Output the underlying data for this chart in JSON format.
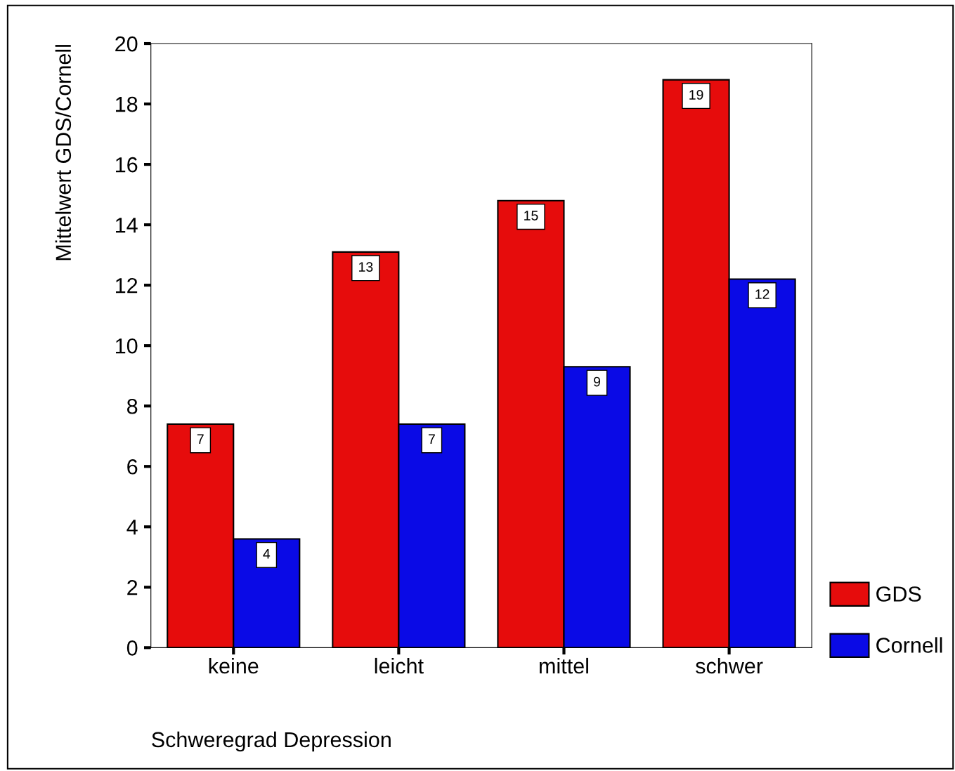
{
  "chart_data": {
    "type": "bar",
    "xlabel": "Schweregrad Depression",
    "ylabel": "Mittelwert GDS/Cornell",
    "categories": [
      "keine",
      "leicht",
      "mittel",
      "schwer"
    ],
    "series": [
      {
        "name": "GDS",
        "color": "#e60c0c",
        "values": [
          7.4,
          13.1,
          14.8,
          18.8
        ],
        "value_labels": [
          "7",
          "13",
          "15",
          "19"
        ]
      },
      {
        "name": "Cornell",
        "color": "#0a0ae6",
        "values": [
          3.6,
          7.4,
          9.3,
          12.2
        ],
        "value_labels": [
          "4",
          "7",
          "9",
          "12"
        ]
      }
    ],
    "ylim": [
      0,
      20
    ],
    "yticks": [
      0,
      2,
      4,
      6,
      8,
      10,
      12,
      14,
      16,
      18,
      20
    ],
    "grid": false,
    "legend": "right"
  }
}
